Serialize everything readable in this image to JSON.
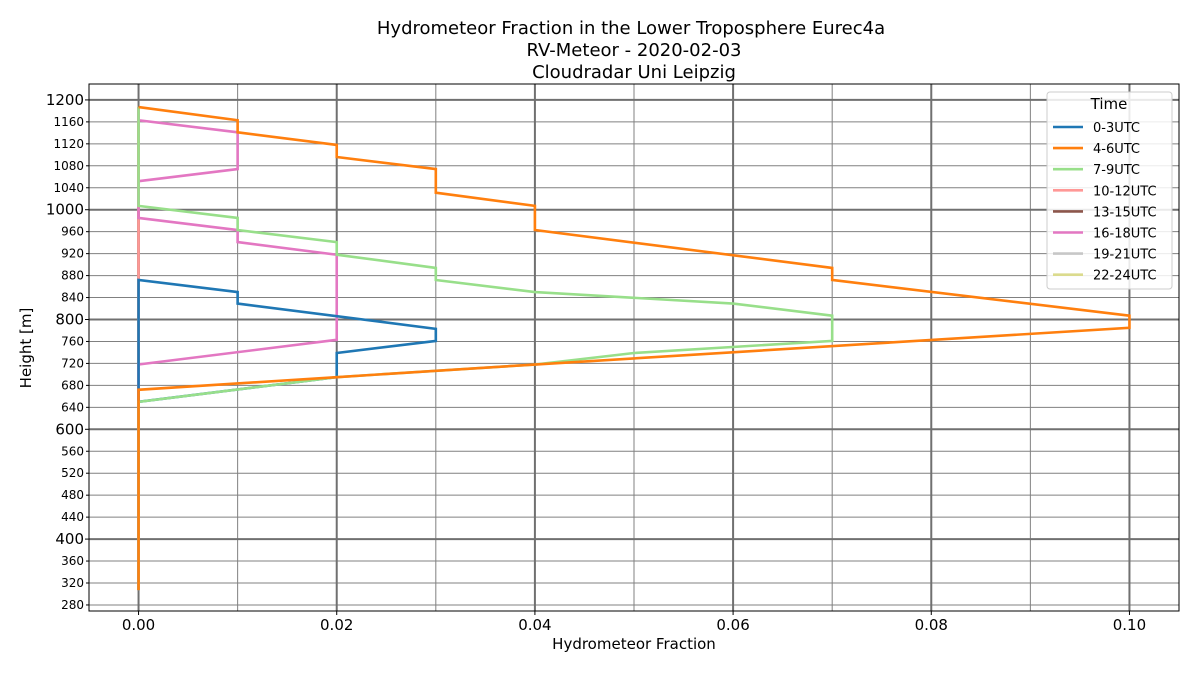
{
  "chart_data": {
    "type": "line",
    "title_lines": [
      "Hydrometeor Fraction in the Lower Troposphere Eurec4a",
      "RV-Meteor - 2020-02-03",
      "Cloudradar Uni Leipzig"
    ],
    "xlabel": "Hydrometeor Fraction",
    "ylabel": "Height [m]",
    "xlim": [
      -0.005,
      0.105
    ],
    "ylim": [
      269,
      1229
    ],
    "x_ticks": [
      "0.00",
      "0.02",
      "0.04",
      "0.06",
      "0.08",
      "0.10"
    ],
    "x_tick_values": [
      0,
      0.02,
      0.04,
      0.06,
      0.08,
      0.1
    ],
    "x_minor_values": [
      0.01,
      0.03,
      0.05,
      0.07,
      0.09
    ],
    "y_major_ticks": [
      "400",
      "600",
      "800",
      "1000",
      "1200"
    ],
    "y_major_values": [
      400,
      600,
      800,
      1000,
      1200
    ],
    "y_minor_ticks": [
      "280",
      "320",
      "360",
      "440",
      "480",
      "520",
      "560",
      "640",
      "680",
      "720",
      "760",
      "840",
      "880",
      "920",
      "960",
      "1040",
      "1080",
      "1120",
      "1160"
    ],
    "y_minor_values": [
      280,
      320,
      360,
      440,
      480,
      520,
      560,
      640,
      680,
      720,
      760,
      840,
      880,
      920,
      960,
      1040,
      1080,
      1120,
      1160
    ],
    "grid": true,
    "legend": {
      "title": "Time",
      "placement": "top-right"
    },
    "series": [
      {
        "name": "0-3UTC",
        "color": "#1f77b4",
        "points": [
          [
            0,
            307
          ],
          [
            0,
            872
          ],
          [
            0.01,
            850
          ],
          [
            0.01,
            829
          ],
          [
            0.03,
            783
          ],
          [
            0.03,
            761
          ],
          [
            0.02,
            739
          ],
          [
            0.02,
            695
          ],
          [
            0,
            650
          ]
        ]
      },
      {
        "name": "4-6UTC",
        "color": "#ff7f0e",
        "points": [
          [
            0,
            307
          ],
          [
            0,
            672
          ],
          [
            0.02,
            695
          ],
          [
            0.04,
            718
          ],
          [
            0.1,
            785
          ],
          [
            0.1,
            807
          ],
          [
            0.07,
            872
          ],
          [
            0.07,
            894
          ],
          [
            0.04,
            963
          ],
          [
            0.04,
            1007
          ],
          [
            0.03,
            1031
          ],
          [
            0.03,
            1074
          ],
          [
            0.02,
            1096
          ],
          [
            0.02,
            1118
          ],
          [
            0.01,
            1141
          ],
          [
            0.01,
            1163
          ],
          [
            0,
            1187
          ]
        ]
      },
      {
        "name": "7-9UTC",
        "color": "#98df8a",
        "points": [
          [
            0,
            307
          ],
          [
            0,
            650
          ],
          [
            0.02,
            695
          ],
          [
            0.04,
            718
          ],
          [
            0.05,
            739
          ],
          [
            0.07,
            761
          ],
          [
            0.07,
            807
          ],
          [
            0.06,
            829
          ],
          [
            0.04,
            850
          ],
          [
            0.03,
            872
          ],
          [
            0.03,
            894
          ],
          [
            0.02,
            918
          ],
          [
            0.02,
            941
          ],
          [
            0.01,
            963
          ],
          [
            0.01,
            985
          ],
          [
            0,
            1007
          ],
          [
            0,
            1187
          ]
        ]
      },
      {
        "name": "10-12UTC",
        "color": "#ff9896",
        "points": [
          [
            0,
            307
          ],
          [
            0,
            1187
          ]
        ]
      },
      {
        "name": "13-15UTC",
        "color": "#8c564b",
        "points": [
          [
            0,
            307
          ],
          [
            0,
            1187
          ]
        ]
      },
      {
        "name": "16-18UTC",
        "color": "#e377c2",
        "points": [
          [
            0,
            307
          ],
          [
            0,
            718
          ],
          [
            0.02,
            763
          ],
          [
            0.02,
            918
          ],
          [
            0.01,
            941
          ],
          [
            0.01,
            963
          ],
          [
            0,
            985
          ],
          [
            0,
            1052
          ],
          [
            0.01,
            1074
          ],
          [
            0.01,
            1141
          ],
          [
            0,
            1163
          ],
          [
            0,
            1187
          ]
        ]
      },
      {
        "name": "19-21UTC",
        "color": "#c7c7c7",
        "points": [
          [
            0,
            307
          ],
          [
            0,
            1187
          ]
        ]
      },
      {
        "name": "22-24UTC",
        "color": "#dbdb8d",
        "points": [
          [
            0,
            307
          ],
          [
            0,
            1187
          ]
        ]
      }
    ]
  }
}
